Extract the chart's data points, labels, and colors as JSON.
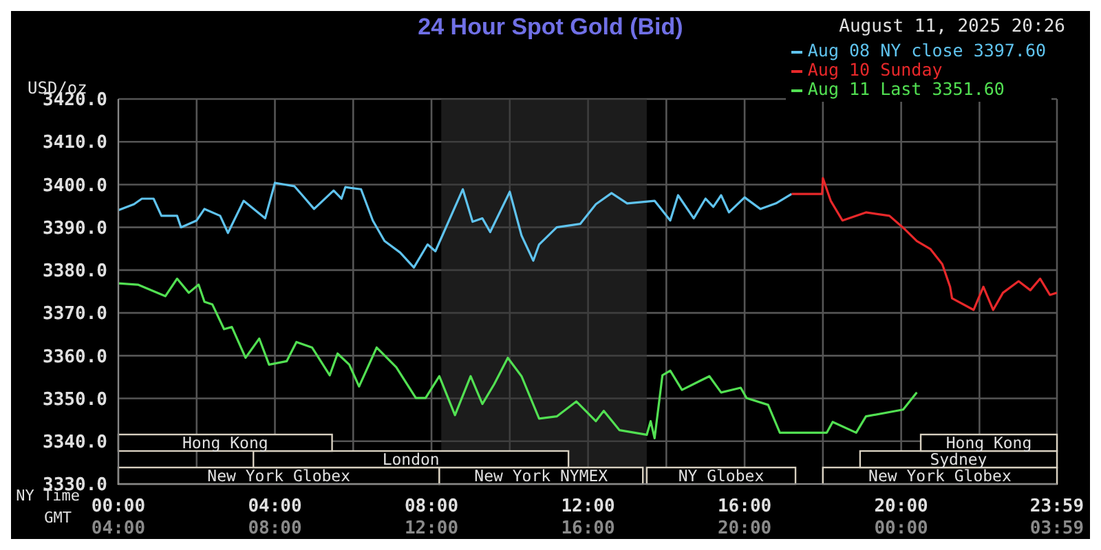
{
  "chart_data": {
    "type": "line",
    "title": "24 Hour Spot Gold (Bid)",
    "subtitle": "August 11, 2025 20:26",
    "ylabel": "USD/oz",
    "xlabel": "NY Time",
    "x2label": "GMT",
    "xlim": [
      0,
      23.98
    ],
    "xticks": [
      {
        "value": 0,
        "label": "00:00"
      },
      {
        "value": 2,
        "label": null
      },
      {
        "value": 4,
        "label": "04:00"
      },
      {
        "value": 6,
        "label": null
      },
      {
        "value": 8,
        "label": "08:00"
      },
      {
        "value": 10,
        "label": null
      },
      {
        "value": 12,
        "label": "12:00"
      },
      {
        "value": 14,
        "label": null
      },
      {
        "value": 16,
        "label": "16:00"
      },
      {
        "value": 18,
        "label": null
      },
      {
        "value": 20,
        "label": "20:00"
      },
      {
        "value": 22,
        "label": null
      },
      {
        "value": 23.98,
        "label": "23:59"
      }
    ],
    "x2lim": [
      "2025-08-11T04:00",
      "2025-08-12T03:59"
    ],
    "x2ticks": [
      {
        "value": "2025-08-11T04:00",
        "label": "04:00"
      },
      {
        "value": "2025-08-11T08:00",
        "label": "08:00"
      },
      {
        "value": "2025-08-11T12:00",
        "label": "12:00"
      },
      {
        "value": "2025-08-11T16:00",
        "label": "16:00"
      },
      {
        "value": "2025-08-11T20:00",
        "label": "20:00"
      },
      {
        "value": "2025-08-12T00:00",
        "label": "00:00"
      },
      {
        "value": "2025-08-12T03:59",
        "label": "03:59"
      }
    ],
    "ylim": [
      3330,
      3420
    ],
    "yticks": [
      {
        "value": 3330,
        "label": "3330.0"
      },
      {
        "value": 3340,
        "label": "3340.0"
      },
      {
        "value": 3350,
        "label": "3350.0"
      },
      {
        "value": 3360,
        "label": "3360.0"
      },
      {
        "value": 3370,
        "label": "3370.0"
      },
      {
        "value": 3380,
        "label": "3380.0"
      },
      {
        "value": 3390,
        "label": "3390.0"
      },
      {
        "value": 3400,
        "label": "3400.0"
      },
      {
        "value": 3410,
        "label": "3410.0"
      },
      {
        "value": 3420,
        "label": "3420.0"
      }
    ],
    "grid": true,
    "legend": "top right",
    "marker": "none",
    "line_style": "solid",
    "bands": [
      {
        "axis": "x",
        "from": 8.25,
        "to": 13.5,
        "color": "#2e2e2e"
      },
      {
        "axis": "x",
        "from": 0,
        "to": 8.2,
        "label": "New York Globex"
      },
      {
        "axis": "x",
        "from": 8.2,
        "to": 13.4,
        "label": "New York NYMEX"
      },
      {
        "axis": "x",
        "from": 13.5,
        "to": 17.3,
        "label": "NY Globex"
      },
      {
        "axis": "x",
        "from": 18.0,
        "to": 23.98,
        "label": "New York Globex"
      },
      {
        "axis": "x",
        "from": 3.45,
        "to": 11.5,
        "label": "London"
      },
      {
        "axis": "x",
        "from": 18.95,
        "to": 23.98,
        "label": "Sydney"
      },
      {
        "axis": "x",
        "from": 0,
        "to": 5.46,
        "label": "Hong Kong"
      },
      {
        "axis": "x",
        "from": 20.5,
        "to": 23.98,
        "label": "Hong Kong"
      }
    ],
    "series": [
      {
        "name": "Aug 08 NY close 3397.60",
        "color": "#5fc3ee",
        "x": [
          0,
          0.4,
          0.6,
          0.9,
          1.1,
          1.5,
          1.6,
          2.0,
          2.2,
          2.6,
          2.8,
          3.2,
          3.75,
          4.0,
          4.5,
          4.7,
          5.0,
          5.5,
          5.7,
          5.8,
          6.2,
          6.5,
          6.8,
          7.2,
          7.55,
          7.9,
          8.1,
          8.8,
          9.05,
          9.3,
          9.5,
          10.0,
          10.3,
          10.6,
          10.75,
          11.2,
          11.8,
          12.2,
          12.6,
          13.0,
          13.7,
          14.1,
          14.3,
          14.7,
          15.0,
          15.2,
          15.4,
          15.6,
          16.0,
          16.4,
          16.8,
          17.2
        ],
        "values": [
          3394.0,
          3395.4,
          3396.7,
          3396.7,
          3392.7,
          3392.7,
          3390.0,
          3391.6,
          3394.3,
          3392.7,
          3388.7,
          3396.2,
          3392.1,
          3400.4,
          3399.6,
          3397.5,
          3394.3,
          3398.6,
          3396.7,
          3399.4,
          3398.9,
          3391.6,
          3386.8,
          3384.1,
          3380.6,
          3386.0,
          3384.4,
          3398.9,
          3391.3,
          3392.1,
          3388.9,
          3398.3,
          3388.1,
          3382.2,
          3386.0,
          3390.0,
          3390.8,
          3395.4,
          3398.0,
          3395.6,
          3396.2,
          3391.6,
          3397.5,
          3392.1,
          3396.7,
          3394.8,
          3397.5,
          3393.5,
          3397.0,
          3394.3,
          3395.6,
          3397.8
        ]
      },
      {
        "name": "Aug 10 Sunday",
        "color": "#e8282a",
        "x": [
          17.2,
          17.98,
          18.0,
          18.2,
          18.5,
          19.1,
          19.7,
          20.1,
          20.4,
          20.75,
          21.05,
          21.25,
          21.3,
          21.85,
          22.1,
          22.35,
          22.6,
          23.0,
          23.3,
          23.55,
          23.8,
          23.98
        ],
        "values": [
          3397.8,
          3397.8,
          3401.5,
          3396.2,
          3391.6,
          3393.5,
          3392.7,
          3389.5,
          3386.8,
          3384.9,
          3381.4,
          3376.1,
          3373.4,
          3370.7,
          3376.1,
          3370.7,
          3374.7,
          3377.4,
          3375.3,
          3378.0,
          3374.2,
          3374.7
        ]
      },
      {
        "name": "Aug 11 Last 3351.60",
        "color": "#52e052",
        "x": [
          0,
          0.5,
          1.2,
          1.5,
          1.8,
          2.05,
          2.2,
          2.4,
          2.7,
          2.9,
          3.25,
          3.6,
          3.85,
          4.3,
          4.55,
          4.95,
          5.4,
          5.6,
          5.9,
          6.15,
          6.6,
          7.1,
          7.6,
          7.85,
          8.2,
          8.6,
          9.0,
          9.3,
          9.6,
          9.95,
          10.3,
          10.75,
          11.2,
          11.7,
          12.2,
          12.4,
          12.8,
          13.5,
          13.6,
          13.7,
          13.9,
          14.1,
          14.4,
          15.1,
          15.4,
          15.9,
          16.05,
          16.6,
          16.9,
          18.1,
          18.25,
          18.85,
          19.1,
          20.05,
          20.4
        ],
        "values": [
          3376.9,
          3376.6,
          3373.9,
          3378.0,
          3374.7,
          3376.6,
          3372.6,
          3372.0,
          3366.2,
          3366.7,
          3359.5,
          3364.0,
          3357.9,
          3358.7,
          3363.2,
          3361.9,
          3355.4,
          3360.5,
          3357.9,
          3352.8,
          3361.9,
          3357.3,
          3350.1,
          3350.1,
          3355.2,
          3346.1,
          3355.2,
          3348.7,
          3353.3,
          3359.5,
          3355.2,
          3345.3,
          3345.8,
          3349.3,
          3344.7,
          3347.1,
          3342.6,
          3341.5,
          3344.7,
          3340.7,
          3355.4,
          3356.5,
          3352.0,
          3355.2,
          3351.4,
          3352.5,
          3350.1,
          3348.5,
          3342.0,
          3342.0,
          3344.5,
          3342.0,
          3345.8,
          3347.4,
          3351.4
        ]
      }
    ]
  }
}
